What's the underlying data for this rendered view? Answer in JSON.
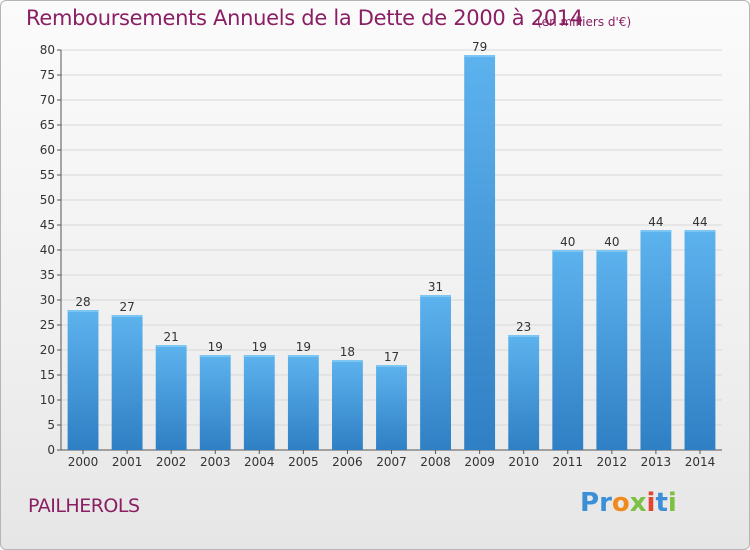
{
  "header": {
    "title": "Remboursements Annuels de la Dette de 2000 à 2014",
    "unit": "(en milliers d'€)"
  },
  "commune": "PAILHEROLS",
  "logo": {
    "letters": [
      "P",
      "r",
      "o",
      "x",
      "i",
      "t",
      "i"
    ],
    "colors": [
      "#3b8fd6",
      "#3b8fd6",
      "#f08a1c",
      "#7cc142",
      "#e2462e",
      "#3b8fd6",
      "#7cc142"
    ]
  },
  "chart_data": {
    "type": "bar",
    "categories": [
      "2000",
      "2001",
      "2002",
      "2003",
      "2004",
      "2005",
      "2006",
      "2007",
      "2008",
      "2009",
      "2010",
      "2011",
      "2012",
      "2013",
      "2014"
    ],
    "values": [
      28,
      27,
      21,
      19,
      19,
      19,
      18,
      17,
      31,
      79,
      23,
      40,
      40,
      44,
      44
    ],
    "ylim": [
      0,
      80
    ],
    "yticks": [
      0,
      5,
      10,
      15,
      20,
      25,
      30,
      35,
      40,
      45,
      50,
      55,
      60,
      65,
      70,
      75,
      80
    ],
    "grid": true,
    "bar_color": "#4a9fe0"
  }
}
